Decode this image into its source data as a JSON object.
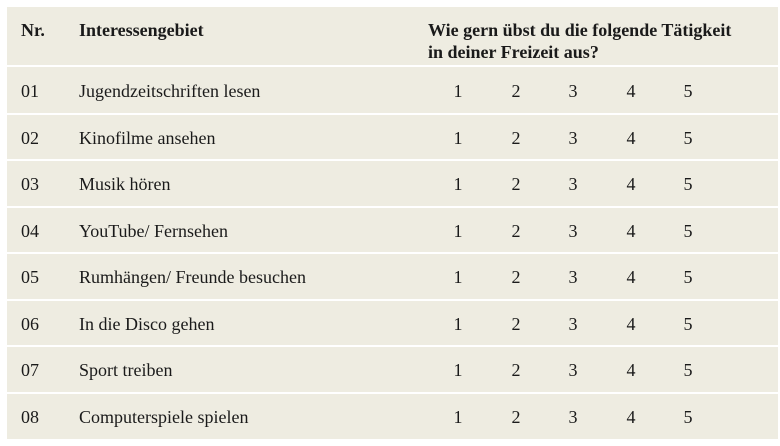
{
  "header": {
    "nr": "Nr.",
    "interest": "Interessengebiet",
    "question_line1": "Wie gern übst du die folgende Tätigkeit",
    "question_line2": "in deiner Freizeit aus?"
  },
  "scale": [
    "1",
    "2",
    "3",
    "4",
    "5"
  ],
  "rows": [
    {
      "nr": "01",
      "interest": "Jugendzeitschriften lesen"
    },
    {
      "nr": "02",
      "interest": "Kinofilme ansehen"
    },
    {
      "nr": "03",
      "interest": "Musik hören"
    },
    {
      "nr": "04",
      "interest": "YouTube/ Fernsehen"
    },
    {
      "nr": "05",
      "interest": "Rumhängen/ Freunde besuchen"
    },
    {
      "nr": "06",
      "interest": "In die Disco gehen"
    },
    {
      "nr": "07",
      "interest": "Sport treiben"
    },
    {
      "nr": "08",
      "interest": "Computerspiele spielen"
    }
  ],
  "colors": {
    "table_background": "#eeece1",
    "row_separator": "#ffffff",
    "text": "#1a1a1a"
  }
}
